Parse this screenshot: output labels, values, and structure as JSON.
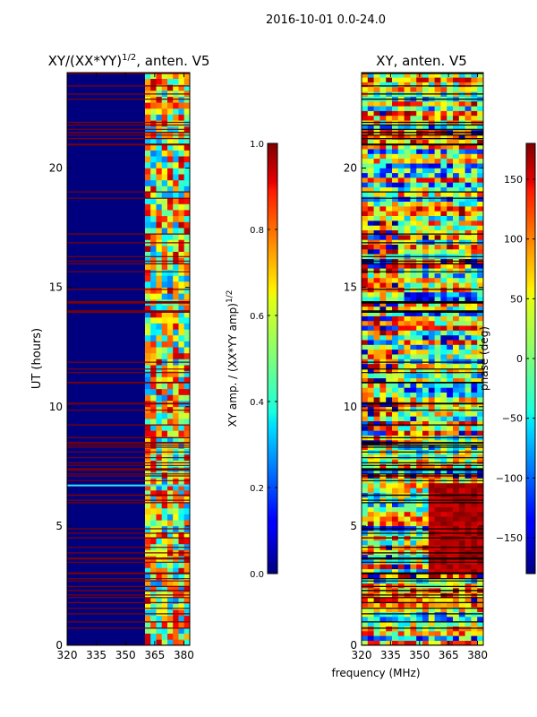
{
  "suptitle": "2016-10-01 0.0-24.0",
  "chart_data": [
    {
      "type": "heatmap",
      "title": "XY/(XX*YY)^{1/2}, anten. V5",
      "title_base": "XY/(XX*YY)",
      "title_sup": "1/2",
      "title_tail": ", anten. V5",
      "xlabel": "",
      "ylabel": "UT (hours)",
      "xlim": [
        320,
        383
      ],
      "ylim": [
        0,
        24
      ],
      "xticks": [
        320,
        335,
        350,
        365,
        380
      ],
      "yticks": [
        0,
        5,
        10,
        15,
        20
      ],
      "signal_band_mhz": [
        360,
        383
      ],
      "colorbar": {
        "label": "XY amp. / (XX*YY amp)^{1/2}",
        "label_base": "XY amp. / (XX*YY amp)",
        "label_sup": "1/2",
        "range": [
          0.0,
          1.0
        ],
        "ticks": [
          "0.0",
          "0.2",
          "0.4",
          "0.6",
          "0.8",
          "1.0"
        ],
        "tick_values": [
          0.0,
          0.2,
          0.4,
          0.6,
          0.8,
          1.0
        ]
      }
    },
    {
      "type": "heatmap",
      "title": "XY, anten. V5",
      "xlabel": "frequency (MHz)",
      "ylabel": "",
      "xlim": [
        320,
        383
      ],
      "ylim": [
        0,
        24
      ],
      "xticks": [
        320,
        335,
        350,
        365,
        380
      ],
      "yticks": [
        0,
        5,
        10,
        15,
        20
      ],
      "colorbar": {
        "label": "phase (deg)",
        "range": [
          -180,
          180
        ],
        "ticks": [
          "−150",
          "−100",
          "−50",
          "0",
          "50",
          "100",
          "150"
        ],
        "tick_values": [
          -150,
          -100,
          -50,
          0,
          50,
          100,
          150
        ]
      }
    }
  ],
  "colors": {
    "jet_dark_blue": "#00007f",
    "jet_dark_red": "#7f0000",
    "flag_red_line": "#7f0000",
    "flag_black_line": "#000000"
  }
}
